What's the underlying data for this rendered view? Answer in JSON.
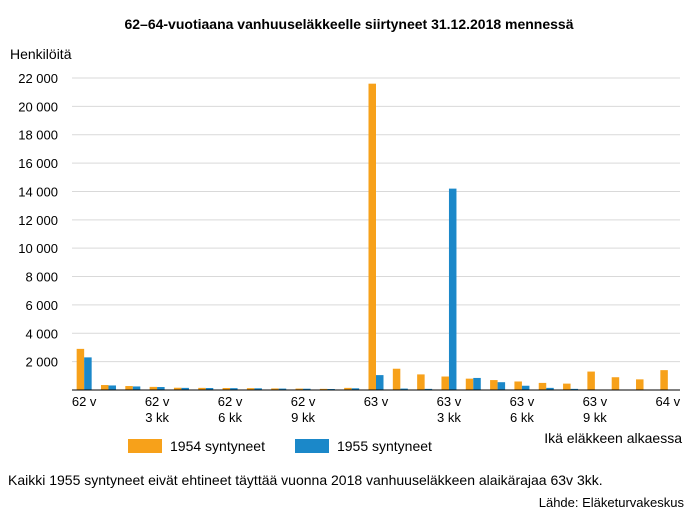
{
  "chart_data": {
    "type": "bar",
    "title": "62–64-vuotiaana vanhuuseläkkeelle siirtyneet 31.12.2018 mennessä",
    "ylabel": "Henkilöitä",
    "xlabel": "Ikä eläkkeen alkaessa",
    "ylim": [
      0,
      22000
    ],
    "yticks": [
      "2 000",
      "4 000",
      "6 000",
      "8 000",
      "10 000",
      "12 000",
      "14 000",
      "16 000",
      "18 000",
      "20 000",
      "22 000"
    ],
    "ytick_values": [
      2000,
      4000,
      6000,
      8000,
      10000,
      12000,
      14000,
      16000,
      18000,
      20000,
      22000
    ],
    "xtick_labels": [
      {
        "index": 0,
        "line1": "62 v",
        "line2": ""
      },
      {
        "index": 3,
        "line1": "62 v",
        "line2": "3 kk"
      },
      {
        "index": 6,
        "line1": "62 v",
        "line2": "6 kk"
      },
      {
        "index": 9,
        "line1": "62 v",
        "line2": "9 kk"
      },
      {
        "index": 12,
        "line1": "63 v",
        "line2": ""
      },
      {
        "index": 15,
        "line1": "63 v",
        "line2": "3 kk"
      },
      {
        "index": 18,
        "line1": "63 v",
        "line2": "6 kk"
      },
      {
        "index": 21,
        "line1": "63 v",
        "line2": "9 kk"
      },
      {
        "index": 24,
        "line1": "64 v",
        "line2": ""
      }
    ],
    "series": [
      {
        "name": "1954 syntyneet",
        "color": "#f7a11a",
        "values": [
          2900,
          350,
          280,
          220,
          160,
          150,
          140,
          130,
          110,
          100,
          80,
          150,
          21600,
          1500,
          1100,
          950,
          800,
          700,
          600,
          500,
          450,
          1300,
          900,
          750,
          1400
        ]
      },
      {
        "name": "1955 syntyneet",
        "color": "#1b88c9",
        "values": [
          2300,
          320,
          250,
          210,
          150,
          140,
          130,
          120,
          100,
          90,
          70,
          120,
          1050,
          100,
          80,
          14200,
          850,
          550,
          300,
          150,
          80,
          0,
          0,
          0,
          0
        ]
      }
    ],
    "grid": true,
    "legend_position": "bottom"
  },
  "footnote": "Kaikki 1955 syntyneet eivät ehtineet täyttää vuonna 2018 vanhuuseläkkeen alaikärajaa 63v 3kk.",
  "source": "Lähde: Eläketurvakeskus"
}
